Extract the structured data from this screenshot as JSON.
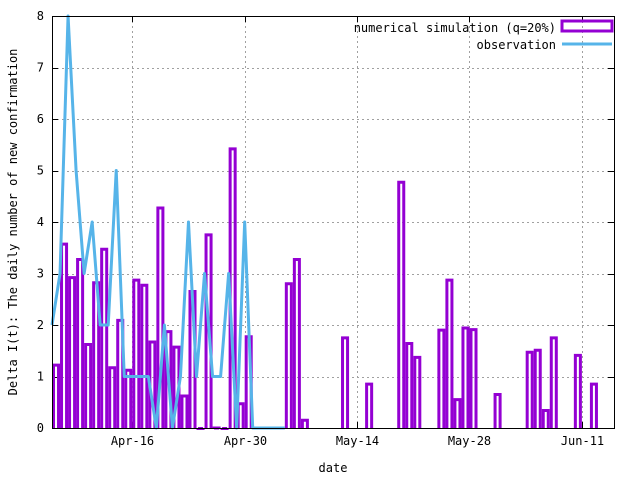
{
  "chart_data": {
    "type": "bar",
    "title": "",
    "xlabel": "date",
    "ylabel": "Delta I(t): The daily number of new confirmation",
    "ylim": [
      0,
      8
    ],
    "yticks": [
      "0",
      "1",
      "2",
      "3",
      "4",
      "5",
      "6",
      "7",
      "8"
    ],
    "start_date": "Apr-06",
    "day_labels": [
      "Apr-06",
      "Apr-07",
      "Apr-08",
      "Apr-09",
      "Apr-10",
      "Apr-11",
      "Apr-12",
      "Apr-13",
      "Apr-14",
      "Apr-15",
      "Apr-16",
      "Apr-17",
      "Apr-18",
      "Apr-19",
      "Apr-20",
      "Apr-21",
      "Apr-22",
      "Apr-23",
      "Apr-24",
      "Apr-25",
      "Apr-26",
      "Apr-27",
      "Apr-28",
      "Apr-29",
      "Apr-30",
      "May-01",
      "May-02",
      "May-03",
      "May-04",
      "May-05",
      "May-06",
      "May-07",
      "May-08",
      "May-09",
      "May-10",
      "May-11",
      "May-12",
      "May-13",
      "May-14",
      "May-15",
      "May-16",
      "May-17",
      "May-18",
      "May-19",
      "May-20",
      "May-21",
      "May-22",
      "May-23",
      "May-24",
      "May-25",
      "May-26",
      "May-27",
      "May-28",
      "May-29",
      "May-30",
      "May-31",
      "Jun-01",
      "Jun-02",
      "Jun-03",
      "Jun-04",
      "Jun-05",
      "Jun-06",
      "Jun-07",
      "Jun-08",
      "Jun-09",
      "Jun-10",
      "Jun-11",
      "Jun-12",
      "Jun-13",
      "Jun-14",
      "Jun-15"
    ],
    "xticks": [
      {
        "date": "Apr-16",
        "label": "Apr-16"
      },
      {
        "date": "Apr-30",
        "label": "Apr-30"
      },
      {
        "date": "May-14",
        "label": "May-14"
      },
      {
        "date": "May-28",
        "label": "May-28"
      },
      {
        "date": "Jun-11",
        "label": "Jun-11"
      }
    ],
    "xlim": [
      "Apr-06",
      "Jun-15"
    ],
    "grid": true,
    "legend_position": "top-right",
    "series": [
      {
        "name": "numerical simulation (q=20%)",
        "style": "steps",
        "color": "#9400d3",
        "values": [
          1.25,
          3.6,
          2.95,
          3.3,
          1.65,
          2.85,
          3.5,
          1.2,
          2.12,
          1.15,
          2.9,
          2.8,
          1.7,
          4.3,
          1.9,
          1.6,
          0.65,
          2.68,
          0.02,
          3.78,
          0.03,
          0.02,
          5.45,
          0.5,
          1.8,
          0,
          0,
          0,
          0,
          2.83,
          3.3,
          0.18,
          0,
          0,
          0,
          0,
          1.78,
          0,
          0,
          0.88,
          0,
          0,
          0,
          4.8,
          1.67,
          1.4,
          0,
          0,
          1.93,
          2.9,
          0.58,
          1.97,
          1.94,
          0,
          0,
          0.68,
          0,
          0,
          0,
          1.5,
          1.54,
          0.37,
          1.78,
          0,
          0,
          1.44,
          0,
          0.88
        ]
      },
      {
        "name": "observation",
        "style": "line",
        "color": "#56b4e9",
        "values": [
          2,
          3,
          8,
          5,
          3,
          4,
          2,
          2,
          5,
          1,
          1,
          1,
          1,
          0,
          2,
          0,
          1,
          4,
          1,
          3,
          1,
          1,
          3,
          0,
          4,
          0,
          0,
          0,
          0,
          0
        ]
      }
    ]
  }
}
